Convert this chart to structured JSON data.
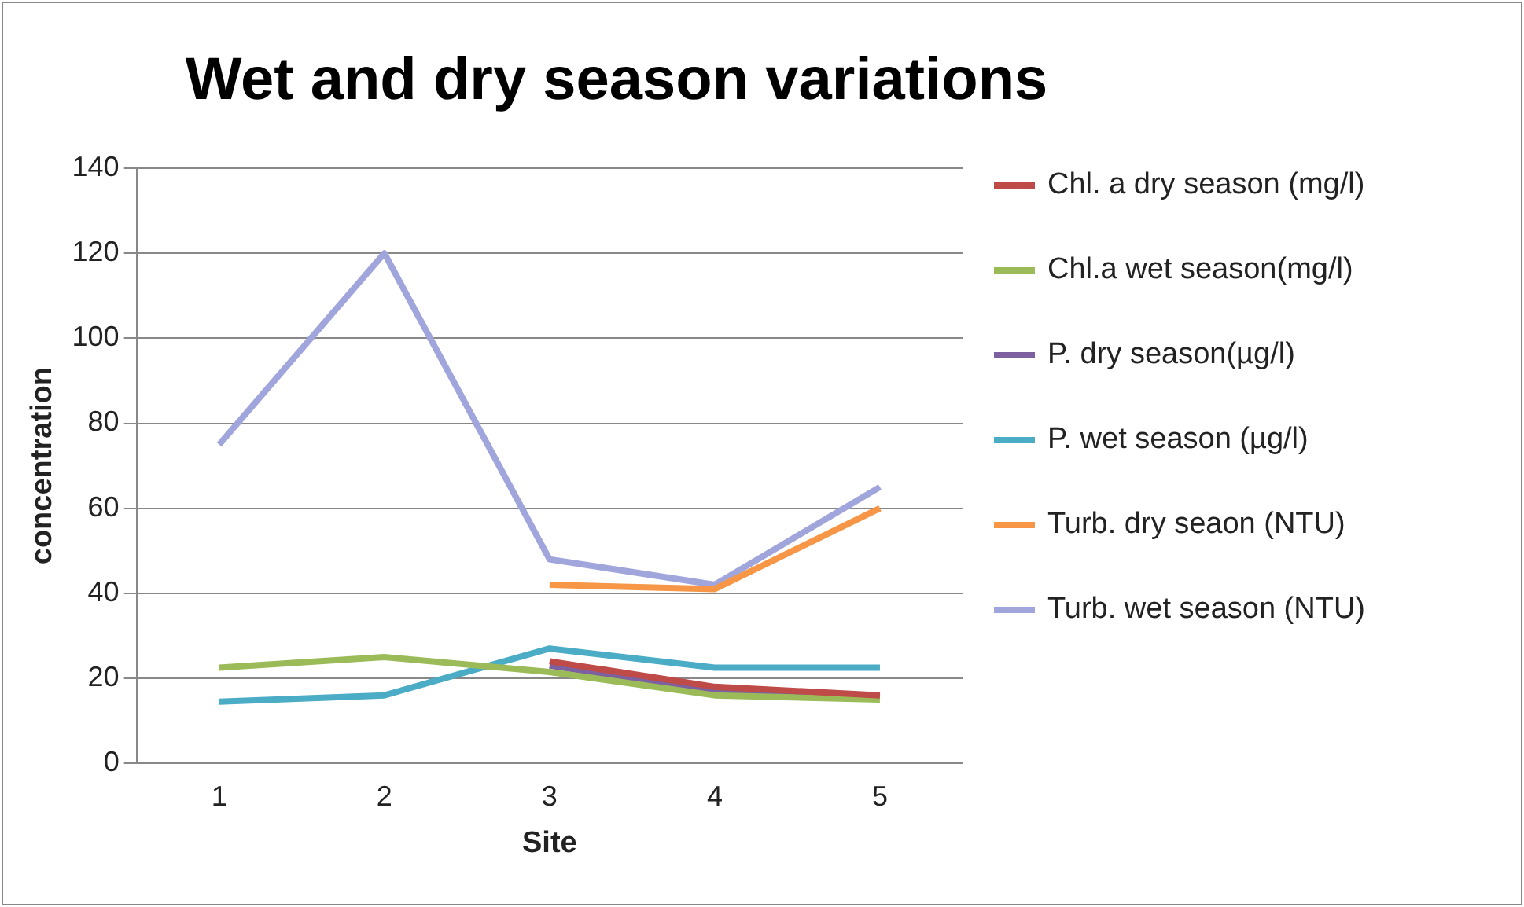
{
  "chart_data": {
    "type": "line",
    "title": "Wet and dry season variations",
    "xlabel": "Site",
    "ylabel": "concentration",
    "categories": [
      "1",
      "2",
      "3",
      "4",
      "5"
    ],
    "series": [
      {
        "name": "Chl. a dry season (mg/l)",
        "color": "#be4b48",
        "values": [
          null,
          null,
          24,
          18,
          16
        ]
      },
      {
        "name": "Chl.a wet season(mg/l)",
        "color": "#9bbb59",
        "values": [
          22.5,
          25,
          21.5,
          16,
          15
        ]
      },
      {
        "name": "P. dry season(µg/l)",
        "color": "#7d60a0",
        "values": [
          null,
          null,
          23,
          17,
          15.5
        ]
      },
      {
        "name": "P. wet season (µg/l)",
        "color": "#4bacc6",
        "values": [
          14.5,
          16,
          27,
          22.5,
          22.5
        ]
      },
      {
        "name": "Turb.  dry seaon (NTU)",
        "color": "#f79646",
        "values": [
          null,
          null,
          42,
          41,
          60
        ]
      },
      {
        "name": "Turb. wet season (NTU)",
        "color": "#a0a6dc",
        "values": [
          75,
          120,
          48,
          42,
          65
        ]
      }
    ],
    "ylim": [
      0,
      140
    ],
    "yticks": [
      0,
      20,
      40,
      60,
      80,
      100,
      120,
      140
    ],
    "grid": "y",
    "legend": "right",
    "marker": "none"
  }
}
